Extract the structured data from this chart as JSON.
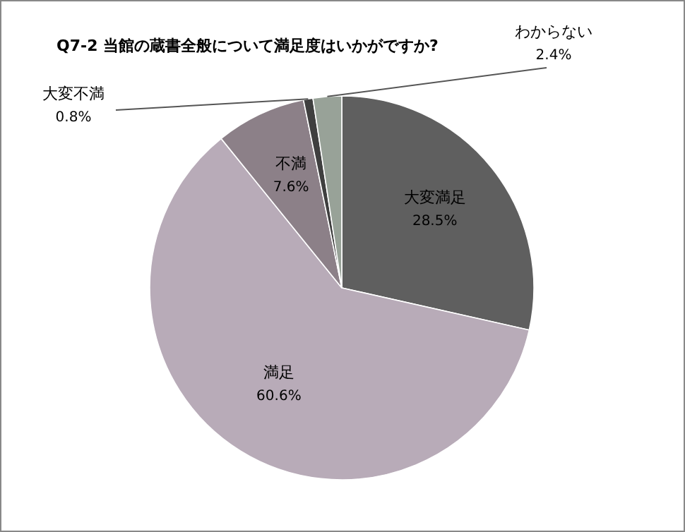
{
  "chart_data": {
    "type": "pie",
    "title": "Q7-2  当館の蔵書全般について満足度はいかがですか?",
    "categories": [
      "大変満足",
      "満足",
      "不満",
      "大変不満",
      "わからない"
    ],
    "values": [
      28.5,
      60.6,
      7.6,
      0.8,
      2.4
    ],
    "value_labels": [
      "28.5%",
      "60.6%",
      "7.6%",
      "0.8%",
      "2.4%"
    ],
    "colors": [
      "#5f5f5f",
      "#b8abb8",
      "#8c8088",
      "#3f3f3f",
      "#98a298"
    ],
    "legend": false
  }
}
